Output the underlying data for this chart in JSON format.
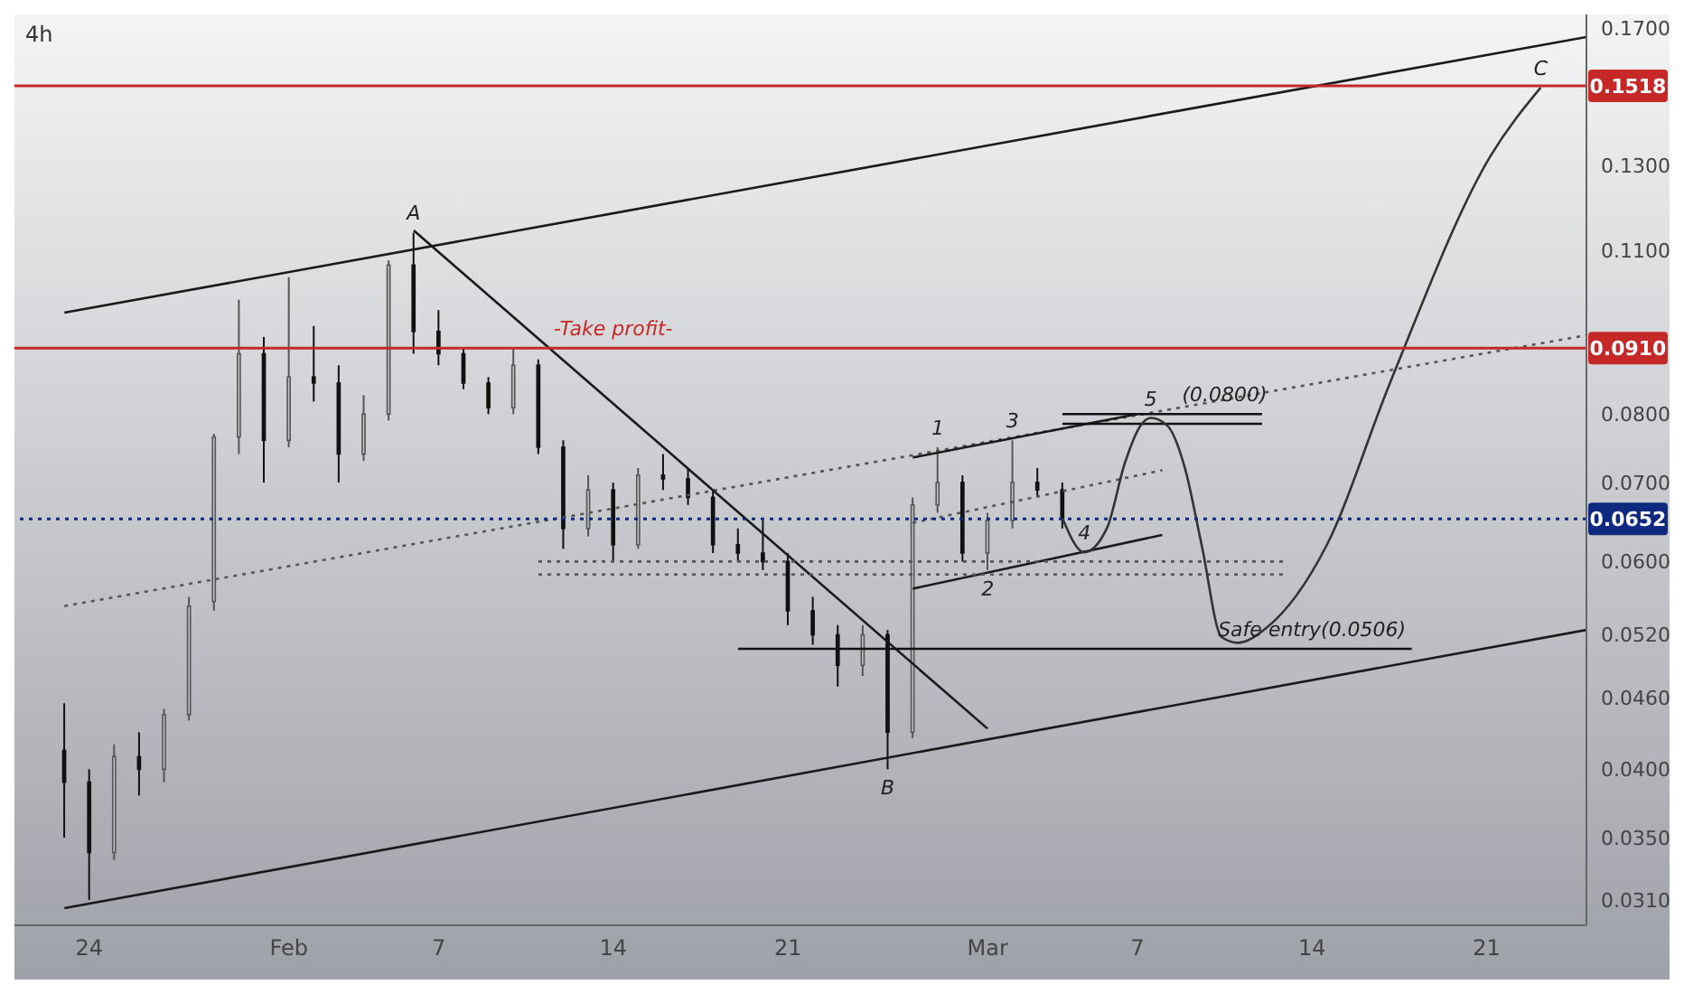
{
  "chart_data": {
    "type": "candlestick",
    "title": "4h",
    "log": "y",
    "x": [
      "--01-23",
      "--01-24",
      "--01-25",
      "--01-26",
      "--01-27",
      "--01-28",
      "--01-29",
      "--01-30",
      "--01-31",
      "--02-01",
      "--02-02",
      "--02-03",
      "--02-04",
      "--02-05",
      "--02-06",
      "--02-07",
      "--02-08",
      "--02-09",
      "--02-10",
      "--02-11",
      "--02-12",
      "--02-13",
      "--02-14",
      "--02-15",
      "--02-16",
      "--02-17",
      "--02-18",
      "--02-19",
      "--02-20",
      "--02-21",
      "--02-22",
      "--02-23",
      "--02-24",
      "--02-25",
      "--02-26",
      "--02-27",
      "--02-28",
      "--03-01",
      "--03-02",
      "--03-03",
      "--03-04"
    ],
    "ohlc": [
      [
        0.0415,
        0.0455,
        0.035,
        0.039
      ],
      [
        0.039,
        0.04,
        0.031,
        0.034
      ],
      [
        0.034,
        0.042,
        0.0335,
        0.041
      ],
      [
        0.041,
        0.043,
        0.038,
        0.04
      ],
      [
        0.04,
        0.045,
        0.039,
        0.0445
      ],
      [
        0.0445,
        0.056,
        0.044,
        0.055
      ],
      [
        0.0555,
        0.077,
        0.0545,
        0.0765
      ],
      [
        0.0765,
        0.1,
        0.074,
        0.09
      ],
      [
        0.09,
        0.093,
        0.07,
        0.076
      ],
      [
        0.076,
        0.1045,
        0.075,
        0.086
      ],
      [
        0.086,
        0.095,
        0.082,
        0.085
      ],
      [
        0.085,
        0.088,
        0.07,
        0.074
      ],
      [
        0.074,
        0.083,
        0.073,
        0.08
      ],
      [
        0.08,
        0.108,
        0.079,
        0.107
      ],
      [
        0.107,
        0.114,
        0.09,
        0.094
      ],
      [
        0.094,
        0.098,
        0.088,
        0.09
      ],
      [
        0.09,
        0.091,
        0.084,
        0.085
      ],
      [
        0.085,
        0.086,
        0.08,
        0.081
      ],
      [
        0.081,
        0.091,
        0.08,
        0.088
      ],
      [
        0.088,
        0.089,
        0.074,
        0.075
      ],
      [
        0.075,
        0.076,
        0.0615,
        0.064
      ],
      [
        0.064,
        0.071,
        0.063,
        0.069
      ],
      [
        0.069,
        0.07,
        0.06,
        0.062
      ],
      [
        0.062,
        0.072,
        0.0615,
        0.071
      ],
      [
        0.071,
        0.074,
        0.069,
        0.0705
      ],
      [
        0.0705,
        0.072,
        0.067,
        0.068
      ],
      [
        0.068,
        0.069,
        0.061,
        0.062
      ],
      [
        0.062,
        0.064,
        0.06,
        0.061
      ],
      [
        0.061,
        0.065,
        0.059,
        0.06
      ],
      [
        0.06,
        0.061,
        0.053,
        0.0545
      ],
      [
        0.0545,
        0.056,
        0.051,
        0.052
      ],
      [
        0.052,
        0.053,
        0.047,
        0.049
      ],
      [
        0.049,
        0.053,
        0.048,
        0.052
      ],
      [
        0.052,
        0.0525,
        0.04,
        0.043
      ],
      [
        0.043,
        0.068,
        0.0425,
        0.067
      ],
      [
        0.067,
        0.075,
        0.066,
        0.07
      ],
      [
        0.07,
        0.071,
        0.06,
        0.061
      ],
      [
        0.061,
        0.066,
        0.059,
        0.065
      ],
      [
        0.065,
        0.076,
        0.064,
        0.07
      ],
      [
        0.07,
        0.072,
        0.068,
        0.069
      ],
      [
        0.069,
        0.07,
        0.064,
        0.0652
      ]
    ],
    "colors": [
      "#111111",
      "#111111",
      "#c4c4c4",
      "#111111",
      "#c4c4c4",
      "#c4c4c4",
      "#c4c4c4",
      "#c4c4c4",
      "#111111",
      "#c4c4c4",
      "#111111",
      "#111111",
      "#c4c4c4",
      "#c4c4c4",
      "#111111",
      "#111111",
      "#111111",
      "#111111",
      "#c4c4c4",
      "#111111",
      "#111111",
      "#c4c4c4",
      "#111111",
      "#c4c4c4",
      "#111111",
      "#111111",
      "#111111",
      "#111111",
      "#111111",
      "#111111",
      "#111111",
      "#111111",
      "#c4c4c4",
      "#111111",
      "#c4c4c4",
      "#c4c4c4",
      "#111111",
      "#c4c4c4",
      "#c4c4c4",
      "#111111",
      "#111111"
    ],
    "series": [
      {
        "type": "line",
        "color": "#1a1a1a",
        "line_style": "solid",
        "x": [
          "--01-23",
          "--03-25"
        ],
        "values": [
          0.0975,
          0.167
        ]
      },
      {
        "type": "line",
        "color": "#1a1a1a",
        "line_style": "solid",
        "x": [
          "--01-23",
          "--03-25"
        ],
        "values": [
          0.0305,
          0.0525
        ]
      },
      {
        "type": "line",
        "color": "#555555",
        "line_style": "dotted",
        "x": [
          "--01-23",
          "--03-25"
        ],
        "values": [
          0.055,
          0.0933
        ]
      },
      {
        "type": "line",
        "color": "#1a1a1a",
        "line_style": "solid",
        "x": [
          "--02-06",
          "--03-01"
        ],
        "values": [
          0.1145,
          0.0433
        ]
      },
      {
        "type": "line",
        "color": "#1a1a1a",
        "line_style": "solid",
        "x": [
          "--02-26",
          "--03-07"
        ],
        "values": [
          0.0735,
          0.08
        ]
      },
      {
        "type": "line",
        "color": "#1a1a1a",
        "line_style": "solid",
        "x": [
          "--02-26",
          "--03-08"
        ],
        "values": [
          0.0569,
          0.0632
        ]
      },
      {
        "type": "line",
        "color": "#555555",
        "line_style": "dotted",
        "x": [
          "--02-26",
          "--03-08"
        ],
        "values": [
          0.0647,
          0.0717
        ]
      },
      {
        "type": "line",
        "color": "#111111",
        "line_style": "solid",
        "x": [
          "--03-04",
          "--03-12"
        ],
        "values": [
          0.08,
          0.08
        ]
      },
      {
        "type": "line",
        "color": "#111111",
        "line_style": "solid",
        "x": [
          "--03-04",
          "--03-12"
        ],
        "values": [
          0.0785,
          0.0785
        ]
      },
      {
        "type": "line",
        "color": "#555555",
        "line_style": "dotted",
        "x": [
          "--02-11",
          "--03-13"
        ],
        "values": [
          0.06,
          0.06
        ]
      },
      {
        "type": "line",
        "color": "#555555",
        "line_style": "dotted",
        "x": [
          "--02-11",
          "--03-13"
        ],
        "values": [
          0.0585,
          0.0585
        ]
      },
      {
        "type": "line",
        "color": "#111111",
        "line_style": "solid",
        "x": [
          "--02-19",
          "--03-18"
        ],
        "values": [
          0.0506,
          0.0506
        ]
      },
      {
        "type": "line",
        "color": "#333333",
        "line_style": "solid",
        "x": [
          "--03-04T00:00",
          "--03-04T21:00",
          "--03-05T19:00",
          "--03-06T12:00",
          "--03-07T03:00",
          "--03-07T13:00",
          "--03-08T05:00",
          "--03-08T22:00",
          "--03-09T14:00",
          "--03-10T09:00",
          "--03-11T01:00",
          "--03-12T04:00",
          "--03-14T14:00",
          "--03-17T03:00",
          "--03-21T04:00",
          "--03-23T04:00"
        ],
        "values": [
          0.0653,
          0.0611,
          0.0641,
          0.0727,
          0.0782,
          0.0794,
          0.0782,
          0.0719,
          0.0619,
          0.0518,
          0.0512,
          0.0527,
          0.0619,
          0.085,
          0.1325,
          0.1513
        ]
      }
    ],
    "ref_lines": [
      {
        "axis": "y",
        "value": 0.1518,
        "label": "0.1518",
        "color": "#c62828",
        "line_style": "solid"
      },
      {
        "axis": "y",
        "value": 0.091,
        "label": "0.0910",
        "color": "#c62828",
        "line_style": "solid"
      },
      {
        "axis": "y",
        "value": 0.0652,
        "label": "0.0652",
        "color": "#0d2a80",
        "line_style": "dotted"
      }
    ],
    "annotations": [
      {
        "text": "A",
        "x": "--02-06",
        "y": 0.114
      },
      {
        "text": "B",
        "x": "--02-25",
        "y": 0.04
      },
      {
        "text": "C",
        "x": "--03-23T04:00",
        "y": 0.1513
      },
      {
        "text": "1",
        "x": "--02-27",
        "y": 0.075
      },
      {
        "text": "2",
        "x": "--03-01",
        "y": 0.059
      },
      {
        "text": "3",
        "x": "--03-02",
        "y": 0.076
      },
      {
        "text": "4",
        "x": "--03-04T21:00",
        "y": 0.0611
      },
      {
        "text": "5",
        "x": "--03-07T13:00",
        "y": 0.0794
      },
      {
        "text": "(0.0800)",
        "x": "--03-10T12:00",
        "y": 0.08
      },
      {
        "text": "Safe entry(0.0506)",
        "x": "--03-14",
        "y": 0.0506
      },
      {
        "text": "-Take profit-",
        "x": "--02-14",
        "y": 0.091
      }
    ],
    "xlim": [
      "--01-21",
      "--03-25"
    ],
    "xticks": [
      {
        "value": "--01-24",
        "label": "24"
      },
      {
        "value": "--02-01",
        "label": "Feb"
      },
      {
        "value": "--02-07",
        "label": "7"
      },
      {
        "value": "--02-14",
        "label": "14"
      },
      {
        "value": "--02-21",
        "label": "21"
      },
      {
        "value": "--03-01",
        "label": "Mar"
      },
      {
        "value": "--03-07",
        "label": "7"
      },
      {
        "value": "--03-14",
        "label": "14"
      },
      {
        "value": "--03-21",
        "label": "21"
      }
    ],
    "ylim": [
      0.0295,
      0.1745
    ],
    "yticks": [
      {
        "value": 0.031,
        "label": "0.0310"
      },
      {
        "value": 0.035,
        "label": "0.0350"
      },
      {
        "value": 0.04,
        "label": "0.0400"
      },
      {
        "value": 0.046,
        "label": "0.0460"
      },
      {
        "value": 0.052,
        "label": "0.0520"
      },
      {
        "value": 0.06,
        "label": "0.0600"
      },
      {
        "value": 0.07,
        "label": "0.0700"
      },
      {
        "value": 0.08,
        "label": "0.0800"
      },
      {
        "value": 0.11,
        "label": "0.1100"
      },
      {
        "value": 0.13,
        "label": "0.1300"
      },
      {
        "value": 0.17,
        "label": "0.1700"
      }
    ]
  }
}
